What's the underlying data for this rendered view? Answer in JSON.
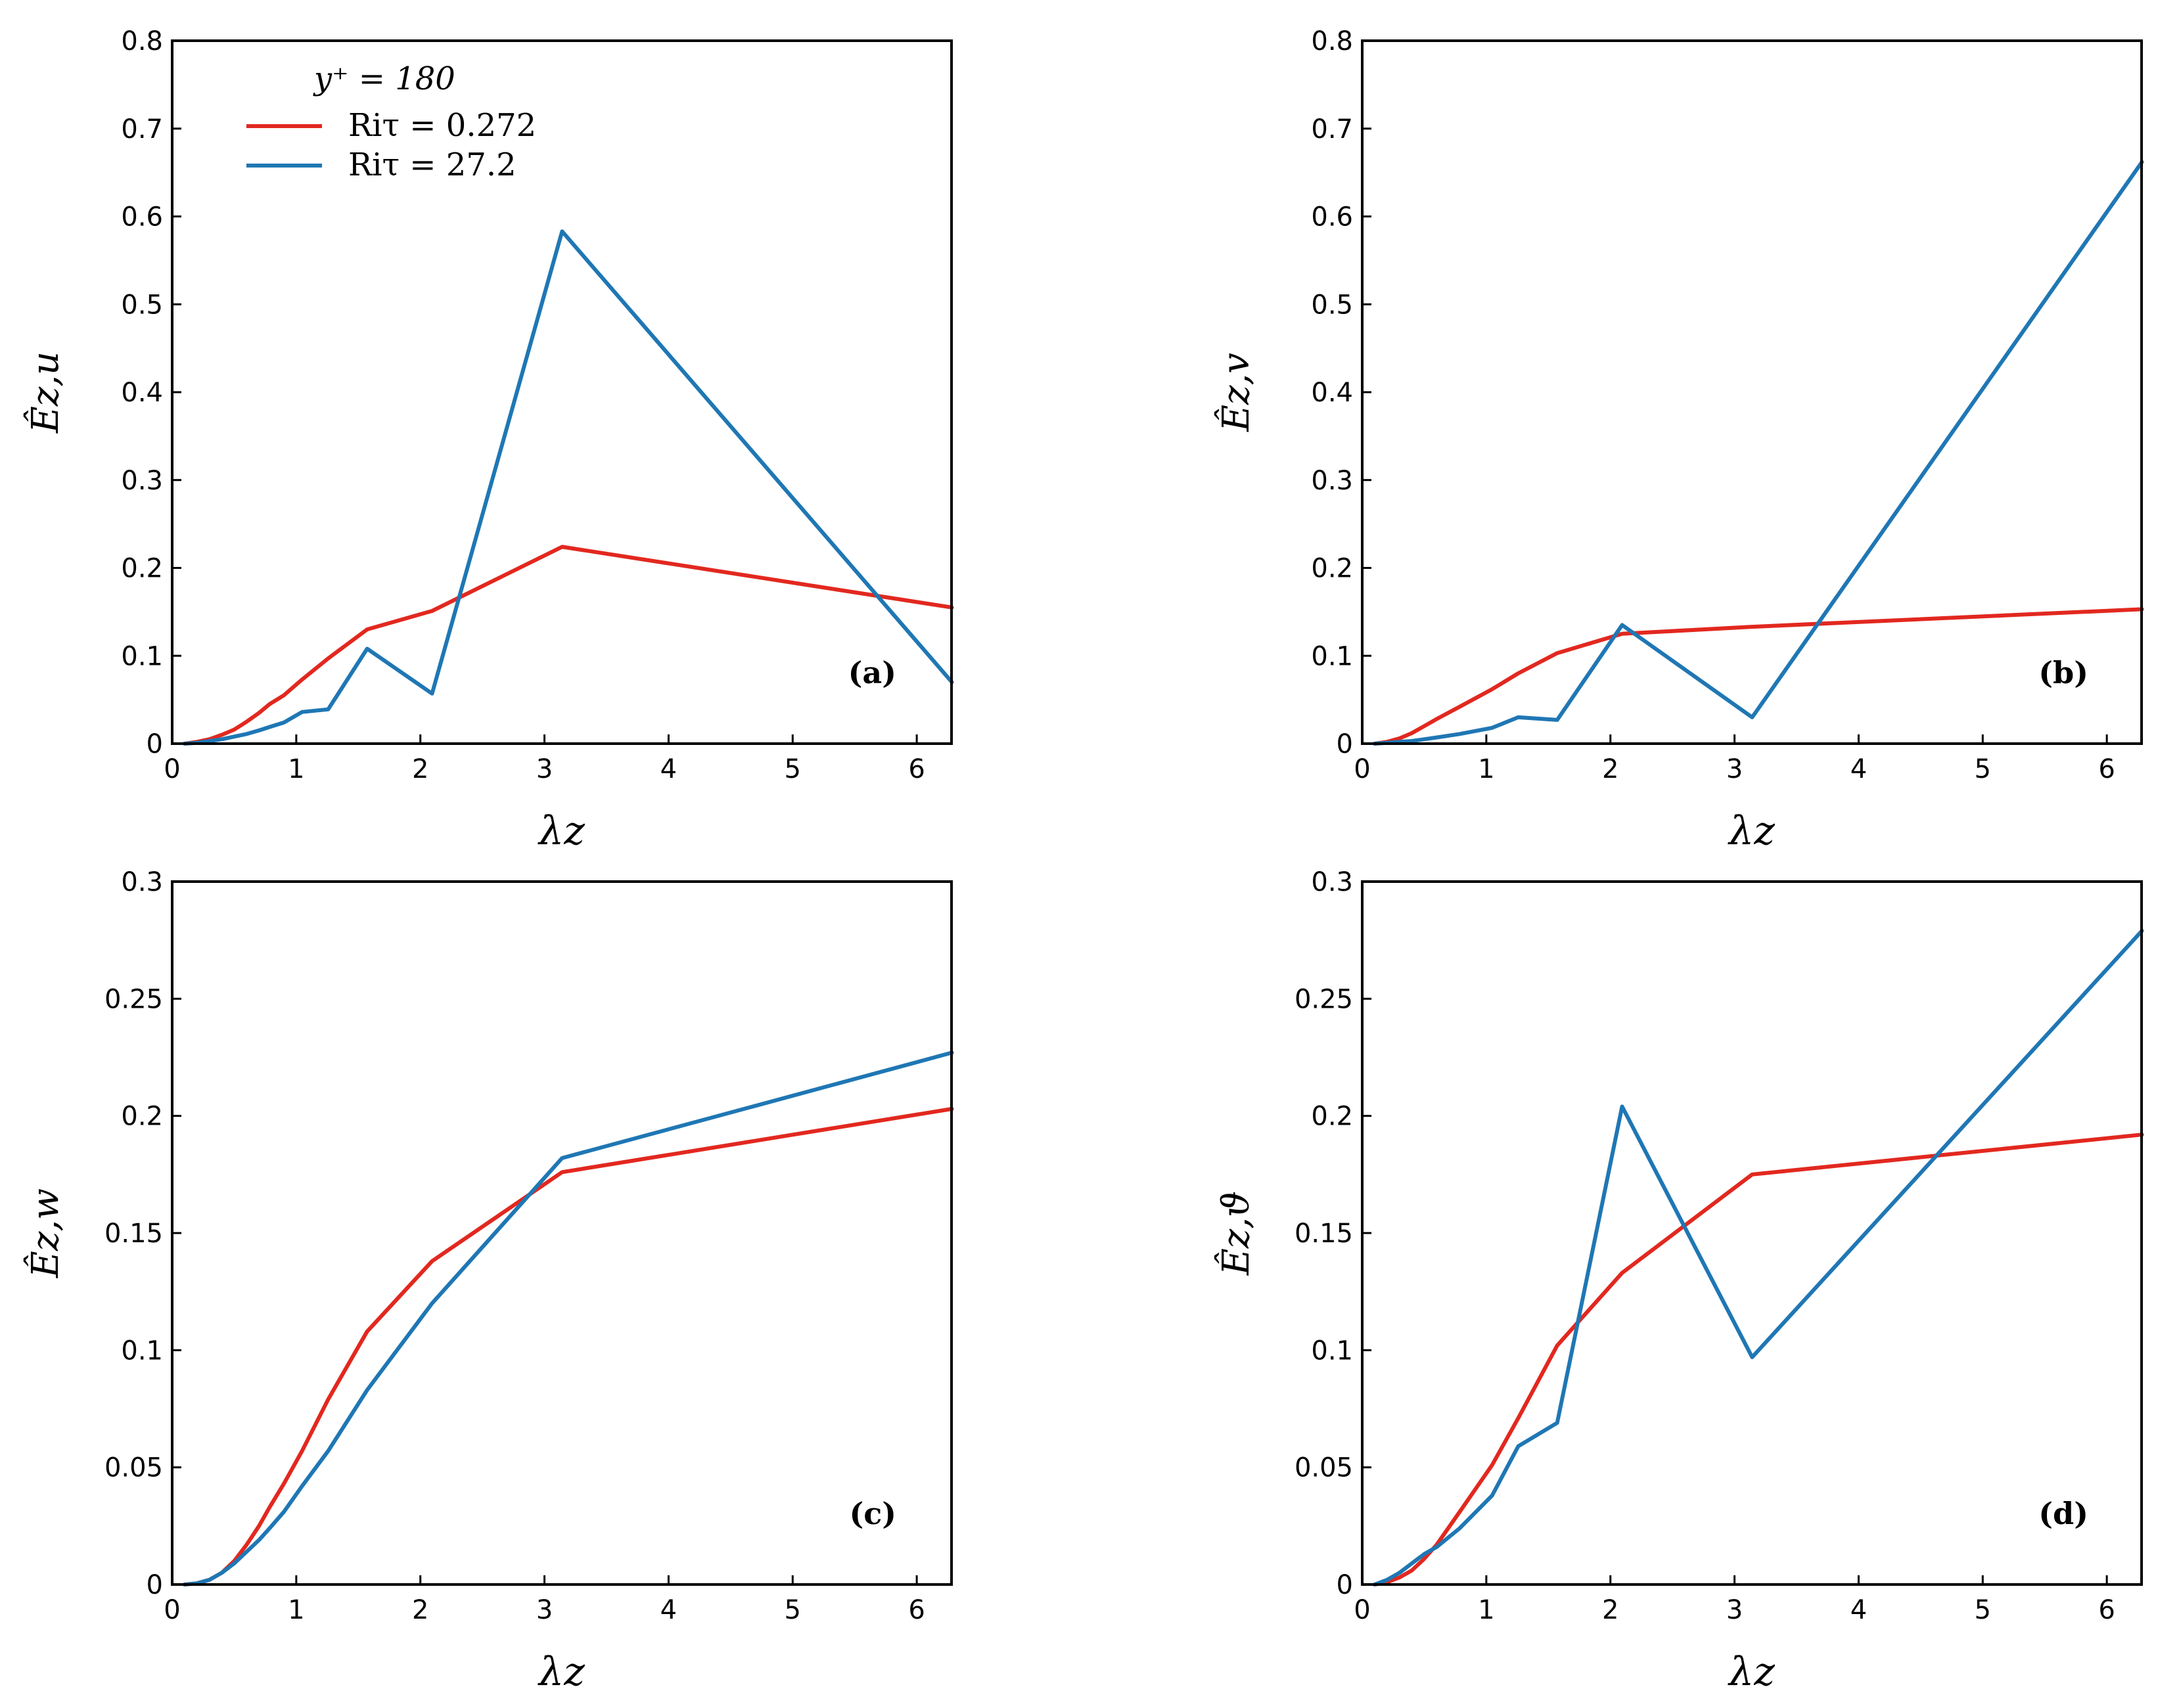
{
  "legend": {
    "title": "y⁺ = 180",
    "entries": [
      {
        "label": "Riτ = 0.272",
        "color": "#e2281f"
      },
      {
        "label": "Riτ = 27.2",
        "color": "#1f77b4"
      }
    ]
  },
  "chart_data": [
    {
      "type": "line",
      "panel": "(a)",
      "xlabel": "λz",
      "ylabel": "Êz,u",
      "xlim": [
        0,
        6.28
      ],
      "ylim": [
        0,
        0.8
      ],
      "xticks": [
        0,
        1,
        2,
        3,
        4,
        5,
        6
      ],
      "xtick_labels": [
        "0",
        "1",
        "2",
        "3",
        "4",
        "5",
        "6"
      ],
      "yticks": [
        0,
        0.1,
        0.2,
        0.3,
        0.4,
        0.5,
        0.6,
        0.7,
        0.8
      ],
      "ytick_labels": [
        "0",
        "0.1",
        "0.2",
        "0.3",
        "0.4",
        "0.5",
        "0.6",
        "0.7",
        "0.8"
      ],
      "series": [
        {
          "name": "Riτ = 0.272",
          "color": "#e2281f",
          "x": [
            0.1,
            0.2,
            0.3,
            0.4,
            0.5,
            0.6,
            0.7,
            0.785,
            0.9,
            1.047,
            1.257,
            1.571,
            2.094,
            3.142,
            6.283
          ],
          "y": [
            0,
            0.002,
            0.005,
            0.01,
            0.016,
            0.025,
            0.035,
            0.045,
            0.055,
            0.073,
            0.097,
            0.13,
            0.151,
            0.224,
            0.155
          ]
        },
        {
          "name": "Riτ = 27.2",
          "color": "#1f77b4",
          "x": [
            0.1,
            0.2,
            0.3,
            0.4,
            0.5,
            0.6,
            0.7,
            0.785,
            0.9,
            1.047,
            1.257,
            1.571,
            2.094,
            3.142,
            6.283
          ],
          "y": [
            0,
            0.001,
            0.003,
            0.005,
            0.008,
            0.011,
            0.015,
            0.019,
            0.024,
            0.036,
            0.039,
            0.108,
            0.057,
            0.583,
            0.07
          ]
        }
      ]
    },
    {
      "type": "line",
      "panel": "(b)",
      "xlabel": "λz",
      "ylabel": "Êz,v",
      "xlim": [
        0,
        6.28
      ],
      "ylim": [
        0,
        0.8
      ],
      "xticks": [
        0,
        1,
        2,
        3,
        4,
        5,
        6
      ],
      "xtick_labels": [
        "0",
        "1",
        "2",
        "3",
        "4",
        "5",
        "6"
      ],
      "yticks": [
        0,
        0.1,
        0.2,
        0.3,
        0.4,
        0.5,
        0.6,
        0.7,
        0.8
      ],
      "ytick_labels": [
        "0",
        "0.1",
        "0.2",
        "0.3",
        "0.4",
        "0.5",
        "0.6",
        "0.7",
        "0.8"
      ],
      "series": [
        {
          "name": "Riτ = 0.272",
          "color": "#e2281f",
          "x": [
            0.1,
            0.2,
            0.3,
            0.4,
            0.5,
            0.6,
            0.785,
            1.047,
            1.257,
            1.571,
            2.094,
            3.142,
            6.283
          ],
          "y": [
            0,
            0.002,
            0.006,
            0.012,
            0.02,
            0.028,
            0.042,
            0.062,
            0.08,
            0.103,
            0.125,
            0.133,
            0.153
          ]
        },
        {
          "name": "Riτ = 27.2",
          "color": "#1f77b4",
          "x": [
            0.1,
            0.2,
            0.3,
            0.4,
            0.5,
            0.6,
            0.785,
            1.047,
            1.257,
            1.571,
            2.094,
            3.142,
            6.283
          ],
          "y": [
            0,
            0.001,
            0.002,
            0.003,
            0.005,
            0.007,
            0.011,
            0.018,
            0.03,
            0.027,
            0.135,
            0.03,
            0.662
          ]
        }
      ]
    },
    {
      "type": "line",
      "panel": "(c)",
      "xlabel": "λz",
      "ylabel": "Êz,w",
      "xlim": [
        0,
        6.28
      ],
      "ylim": [
        0,
        0.3
      ],
      "xticks": [
        0,
        1,
        2,
        3,
        4,
        5,
        6
      ],
      "xtick_labels": [
        "0",
        "1",
        "2",
        "3",
        "4",
        "5",
        "6"
      ],
      "yticks": [
        0,
        0.05,
        0.1,
        0.15,
        0.2,
        0.25,
        0.3
      ],
      "ytick_labels": [
        "0",
        "0.05",
        "0.1",
        "0.15",
        "0.2",
        "0.25",
        "0.3"
      ],
      "series": [
        {
          "name": "Riτ = 0.272",
          "color": "#e2281f",
          "x": [
            0.1,
            0.2,
            0.3,
            0.4,
            0.5,
            0.6,
            0.7,
            0.785,
            0.9,
            1.047,
            1.257,
            1.571,
            2.094,
            3.142,
            6.283
          ],
          "y": [
            0,
            0.0005,
            0.002,
            0.005,
            0.01,
            0.017,
            0.025,
            0.033,
            0.043,
            0.057,
            0.079,
            0.108,
            0.138,
            0.176,
            0.203
          ]
        },
        {
          "name": "Riτ = 27.2",
          "color": "#1f77b4",
          "x": [
            0.1,
            0.2,
            0.3,
            0.4,
            0.5,
            0.6,
            0.7,
            0.785,
            0.9,
            1.047,
            1.257,
            1.571,
            2.094,
            3.142,
            6.283
          ],
          "y": [
            0,
            0.0005,
            0.002,
            0.005,
            0.009,
            0.014,
            0.019,
            0.024,
            0.031,
            0.042,
            0.057,
            0.083,
            0.12,
            0.182,
            0.227
          ]
        }
      ]
    },
    {
      "type": "line",
      "panel": "(d)",
      "xlabel": "λz",
      "ylabel": "Êz,ϑ",
      "xlim": [
        0,
        6.28
      ],
      "ylim": [
        0,
        0.3
      ],
      "xticks": [
        0,
        1,
        2,
        3,
        4,
        5,
        6
      ],
      "xtick_labels": [
        "0",
        "1",
        "2",
        "3",
        "4",
        "5",
        "6"
      ],
      "yticks": [
        0,
        0.05,
        0.1,
        0.15,
        0.2,
        0.25,
        0.3
      ],
      "ytick_labels": [
        "0",
        "0.05",
        "0.1",
        "0.15",
        "0.2",
        "0.25",
        "0.3"
      ],
      "series": [
        {
          "name": "Riτ = 0.272",
          "color": "#e2281f",
          "x": [
            0.1,
            0.2,
            0.3,
            0.4,
            0.5,
            0.6,
            0.785,
            1.047,
            1.257,
            1.571,
            2.094,
            3.142,
            6.283
          ],
          "y": [
            0,
            0.001,
            0.003,
            0.006,
            0.011,
            0.017,
            0.031,
            0.051,
            0.071,
            0.102,
            0.133,
            0.175,
            0.192
          ]
        },
        {
          "name": "Riτ = 27.2",
          "color": "#1f77b4",
          "x": [
            0.1,
            0.2,
            0.3,
            0.4,
            0.5,
            0.6,
            0.785,
            1.047,
            1.257,
            1.571,
            2.094,
            3.142,
            6.283
          ],
          "y": [
            0,
            0.002,
            0.005,
            0.009,
            0.013,
            0.016,
            0.024,
            0.038,
            0.059,
            0.069,
            0.204,
            0.097,
            0.279
          ]
        }
      ]
    }
  ]
}
